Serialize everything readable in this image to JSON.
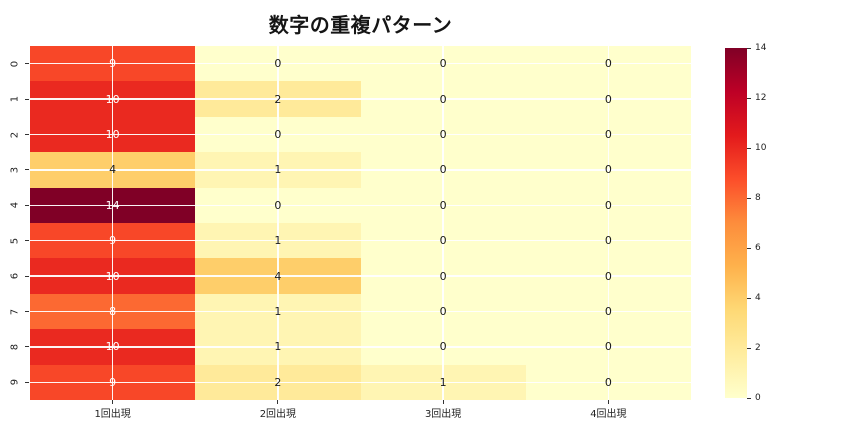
{
  "chart_data": {
    "type": "heatmap",
    "title": "数字の重複パターン",
    "x_categories": [
      "1回出現",
      "2回出現",
      "3回出現",
      "4回出現"
    ],
    "y_categories": [
      "0",
      "1",
      "2",
      "3",
      "4",
      "5",
      "6",
      "7",
      "8",
      "9"
    ],
    "values": [
      [
        9,
        0,
        0,
        0
      ],
      [
        10,
        2,
        0,
        0
      ],
      [
        10,
        0,
        0,
        0
      ],
      [
        4,
        1,
        0,
        0
      ],
      [
        14,
        0,
        0,
        0
      ],
      [
        9,
        1,
        0,
        0
      ],
      [
        10,
        4,
        0,
        0
      ],
      [
        8,
        1,
        0,
        0
      ],
      [
        10,
        1,
        0,
        0
      ],
      [
        9,
        2,
        1,
        0
      ]
    ],
    "vmin": 0,
    "vmax": 14,
    "colormap": "YlOrRd",
    "colormap_stops": [
      "#ffffcc",
      "#ffeda0",
      "#fed976",
      "#feb24c",
      "#fd8d3c",
      "#fc4e2a",
      "#e31a1c",
      "#bd0026",
      "#800026"
    ],
    "colorbar_ticks": [
      "0",
      "2",
      "4",
      "6",
      "8",
      "10",
      "12",
      "14"
    ],
    "grid": true,
    "grid_color": "#ffffff",
    "annotations": true,
    "annot_color_dark": "#1a1a1a",
    "annot_color_light": "#ffffff",
    "legend_position": "right-colorbar"
  }
}
